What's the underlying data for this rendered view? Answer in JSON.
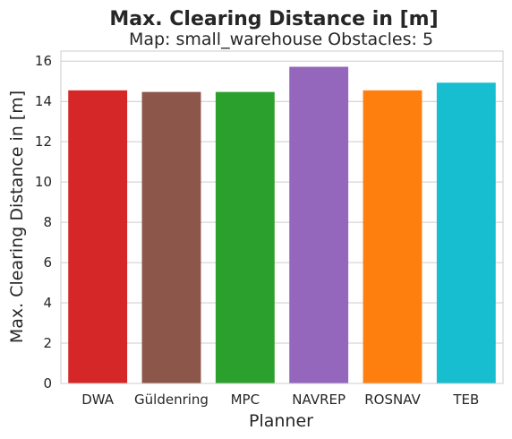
{
  "chart_data": {
    "type": "bar",
    "title": "Max. Clearing Distance in [m]",
    "subtitle": "Map: small_warehouse Obstacles: 5",
    "xlabel": "Planner",
    "ylabel": "Max. Clearing Distance in [m]",
    "categories": [
      "DWA",
      "Güldenring",
      "MPC",
      "NAVREP",
      "ROSNAV",
      "TEB"
    ],
    "values": [
      14.55,
      14.47,
      14.47,
      15.72,
      14.55,
      14.93
    ],
    "colors": [
      "#d62728",
      "#8c564b",
      "#2ca02c",
      "#9467bd",
      "#ff7f0e",
      "#17becf"
    ],
    "ylim": [
      0,
      16.5
    ],
    "yticks": [
      0,
      2,
      4,
      6,
      8,
      10,
      12,
      14,
      16
    ],
    "grid": true,
    "legend": "none"
  }
}
